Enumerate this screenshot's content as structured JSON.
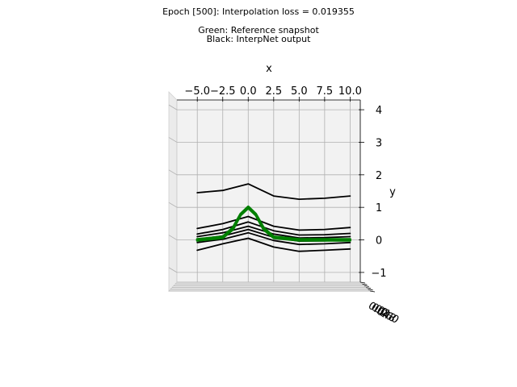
{
  "title": {
    "line1": "Epoch [500]: Interpolation loss = 0.019355",
    "line2": "Green: Reference snapshot",
    "line3": "Black: InterpNet output"
  },
  "chart_data": {
    "type": "line",
    "projection": "3d",
    "xlabel": "x",
    "ylabel": "y",
    "zlabel": "",
    "xlim": [
      -7,
      11
    ],
    "ylim": [
      -1.3,
      4.3
    ],
    "x_ticks": [
      "−5.0",
      "−2.5",
      "0.0",
      "2.5",
      "5.0",
      "7.5",
      "10.0"
    ],
    "y_ticks": [
      "−1",
      "0",
      "1",
      "2",
      "3",
      "4"
    ],
    "z_ticks": [
      "0.0",
      "0.2",
      "0.4",
      "0.6",
      "0.8",
      "1.0"
    ],
    "grid": true,
    "colors": {
      "interpnet": "#000000",
      "reference": "#007f00"
    },
    "series": [
      {
        "id": "interp-1",
        "color": "#000000",
        "x": [
          -5,
          -2.5,
          0,
          2.5,
          5,
          7.5,
          10
        ],
        "y": [
          1.45,
          1.52,
          1.72,
          1.35,
          1.25,
          1.28,
          1.35
        ]
      },
      {
        "id": "interp-2",
        "color": "#000000",
        "x": [
          -5,
          -2.5,
          0,
          2.5,
          5,
          7.5,
          10
        ],
        "y": [
          0.35,
          0.5,
          0.72,
          0.42,
          0.3,
          0.32,
          0.38
        ]
      },
      {
        "id": "interp-3",
        "color": "#000000",
        "x": [
          -5,
          -2.5,
          0,
          2.5,
          5,
          7.5,
          10
        ],
        "y": [
          0.18,
          0.32,
          0.55,
          0.28,
          0.15,
          0.16,
          0.2
        ]
      },
      {
        "id": "interp-4",
        "color": "#000000",
        "x": [
          -5,
          -2.5,
          0,
          2.5,
          5,
          7.5,
          10
        ],
        "y": [
          0.1,
          0.22,
          0.42,
          0.18,
          0.06,
          0.07,
          0.1
        ]
      },
      {
        "id": "interp-5",
        "color": "#000000",
        "x": [
          -5,
          -2.5,
          0,
          2.5,
          5,
          7.5,
          10
        ],
        "y": [
          0.02,
          0.12,
          0.32,
          0.08,
          -0.04,
          -0.03,
          0.0
        ]
      },
      {
        "id": "interp-6",
        "color": "#000000",
        "x": [
          -5,
          -2.5,
          0,
          2.5,
          5,
          7.5,
          10
        ],
        "y": [
          -0.08,
          0.02,
          0.22,
          -0.02,
          -0.14,
          -0.12,
          -0.08
        ]
      },
      {
        "id": "interp-7",
        "color": "#000000",
        "x": [
          -5,
          -2.5,
          0,
          2.5,
          5,
          7.5,
          10
        ],
        "y": [
          -0.32,
          -0.12,
          0.05,
          -0.22,
          -0.35,
          -0.32,
          -0.28
        ]
      },
      {
        "id": "ref-1",
        "color": "#007f00",
        "x": [
          -5,
          -2.5,
          -1.5,
          -0.75,
          0,
          0.75,
          1.5,
          2.5,
          5,
          7.5,
          10
        ],
        "y": [
          0.0,
          0.08,
          0.35,
          0.78,
          1.0,
          0.78,
          0.35,
          0.08,
          0.0,
          0.0,
          0.0
        ]
      },
      {
        "id": "ref-2",
        "color": "#007f00",
        "x": [
          -5,
          -2.5,
          -1.5,
          -0.75,
          0,
          0.75,
          1.5,
          2.5,
          5,
          7.5,
          10
        ],
        "y": [
          0.02,
          0.1,
          0.38,
          0.8,
          1.02,
          0.8,
          0.38,
          0.1,
          0.02,
          0.02,
          0.02
        ]
      },
      {
        "id": "ref-3",
        "color": "#007f00",
        "x": [
          -5,
          -2.5,
          -1.5,
          -0.75,
          0,
          0.75,
          1.5,
          2.5,
          5,
          7.5,
          10
        ],
        "y": [
          -0.02,
          0.06,
          0.32,
          0.76,
          0.98,
          0.76,
          0.32,
          0.06,
          -0.02,
          -0.02,
          -0.02
        ]
      }
    ]
  }
}
